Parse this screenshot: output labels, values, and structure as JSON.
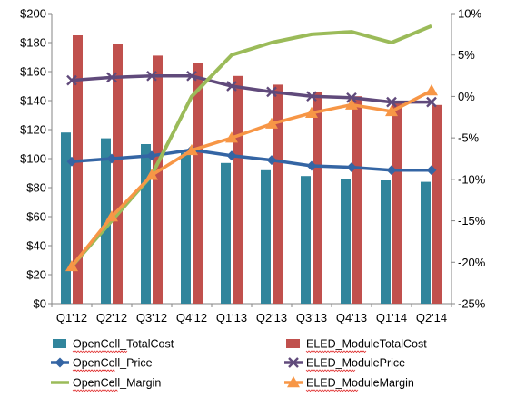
{
  "chart_data": {
    "type": "bar+line",
    "categories": [
      "Q1'12",
      "Q2'12",
      "Q3'12",
      "Q4'12",
      "Q1'13",
      "Q2'13",
      "Q3'13",
      "Q4'13",
      "Q1'14",
      "Q2'14"
    ],
    "y_left": {
      "min": 0,
      "max": 200,
      "step": 20,
      "tick_labels": [
        "$0",
        "$20",
        "$40",
        "$60",
        "$80",
        "$100",
        "$120",
        "$140",
        "$160",
        "$180",
        "$200"
      ]
    },
    "y_right": {
      "min": -25,
      "max": 10,
      "step": 5,
      "tick_labels": [
        "-25%",
        "-20%",
        "-15%",
        "-10%",
        "-5%",
        "0%",
        "5%",
        "10%"
      ]
    },
    "grid": false,
    "legend_position": "bottom",
    "series": [
      {
        "name": "OpenCell_TotalCost",
        "kind": "bar",
        "axis": "left",
        "color": "#31859c",
        "values": [
          118,
          114,
          110,
          104,
          97,
          92,
          88,
          86,
          85,
          84
        ]
      },
      {
        "name": "ELED_ModuleTotalCost",
        "kind": "bar",
        "axis": "left",
        "color": "#c0504d",
        "values": [
          185,
          179,
          171,
          166,
          157,
          151,
          146,
          143,
          140,
          137
        ]
      },
      {
        "name": "OpenCell_Price",
        "kind": "line",
        "axis": "left",
        "color": "#3465a4",
        "marker": "diamond",
        "values": [
          98,
          100,
          102,
          106,
          102,
          99,
          95,
          94,
          92,
          92
        ]
      },
      {
        "name": "ELED_ModulePrice",
        "kind": "line",
        "axis": "left",
        "color": "#604a7b",
        "marker": "x",
        "values": [
          154,
          156,
          157,
          157,
          150,
          146,
          143,
          142,
          139,
          139
        ]
      },
      {
        "name": "OpenCell_Margin",
        "kind": "line",
        "axis": "right",
        "color": "#9bbb59",
        "marker": "none",
        "values": [
          -20.5,
          -15,
          -9.5,
          0,
          5,
          6.5,
          7.5,
          7.8,
          6.5,
          8.5
        ]
      },
      {
        "name": "ELED_ModuleMargin",
        "kind": "line",
        "axis": "right",
        "color": "#f79646",
        "marker": "triangle",
        "values": [
          -20.5,
          -14.5,
          -9.5,
          -6.5,
          -5,
          -3.3,
          -2,
          -1,
          -1.8,
          0.7
        ]
      }
    ]
  }
}
